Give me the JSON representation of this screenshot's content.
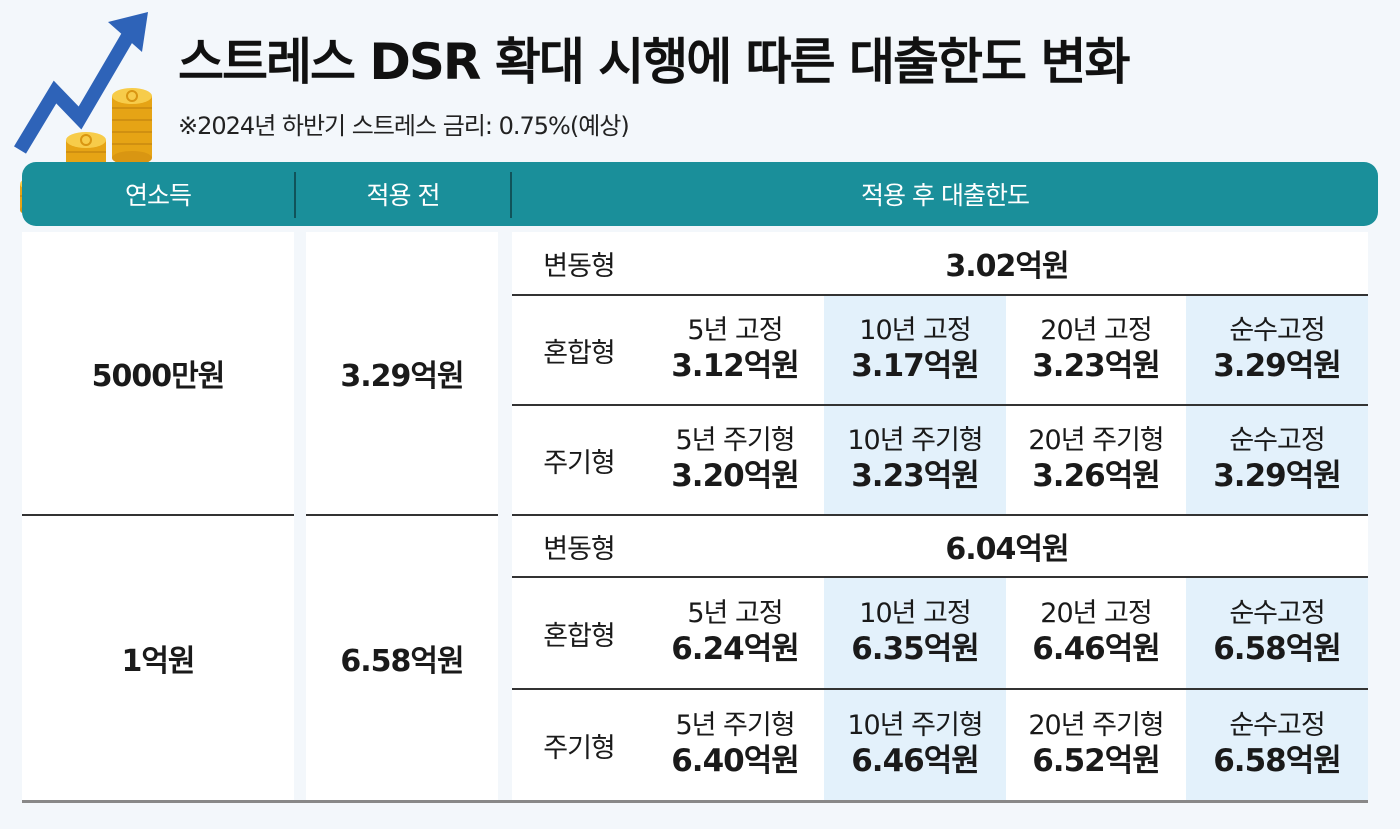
{
  "title": "스트레스 DSR 확대 시행에 따른 대출한도 변화",
  "subtitle": "※2024년 하반기 스트레스 금리: 0.75%(예상)",
  "header": {
    "income": "연소득",
    "before": "적용 전",
    "after": "적용 후 대출한도"
  },
  "groups": [
    {
      "income": "5000만원",
      "before": "3.29억원",
      "variable": {
        "label": "변동형",
        "value": "3.02억원"
      },
      "mixed": {
        "label": "혼합형",
        "options": [
          {
            "name": "5년 고정",
            "value": "3.12억원"
          },
          {
            "name": "10년 고정",
            "value": "3.17억원"
          },
          {
            "name": "20년 고정",
            "value": "3.23억원"
          },
          {
            "name": "순수고정",
            "value": "3.29억원"
          }
        ]
      },
      "periodic": {
        "label": "주기형",
        "options": [
          {
            "name": "5년 주기형",
            "value": "3.20억원"
          },
          {
            "name": "10년 주기형",
            "value": "3.23억원"
          },
          {
            "name": "20년 주기형",
            "value": "3.26억원"
          },
          {
            "name": "순수고정",
            "value": "3.29억원"
          }
        ]
      }
    },
    {
      "income": "1억원",
      "before": "6.58억원",
      "variable": {
        "label": "변동형",
        "value": "6.04억원"
      },
      "mixed": {
        "label": "혼합형",
        "options": [
          {
            "name": "5년 고정",
            "value": "6.24억원"
          },
          {
            "name": "10년 고정",
            "value": "6.35억원"
          },
          {
            "name": "20년 고정",
            "value": "6.46억원"
          },
          {
            "name": "순수고정",
            "value": "6.58억원"
          }
        ]
      },
      "periodic": {
        "label": "주기형",
        "options": [
          {
            "name": "5년 주기형",
            "value": "6.40억원"
          },
          {
            "name": "10년 주기형",
            "value": "6.46억원"
          },
          {
            "name": "20년 주기형",
            "value": "6.52억원"
          },
          {
            "name": "순수고정",
            "value": "6.58억원"
          }
        ]
      }
    }
  ],
  "colors": {
    "header": "#1a8f9a",
    "alt_column": "#e3f1fb",
    "background": "#f3f7fb",
    "arrow": "#2e63b8",
    "coin": "#f2b51c"
  },
  "icons": [
    "rising-arrow-icon",
    "coin-stack-icon"
  ]
}
